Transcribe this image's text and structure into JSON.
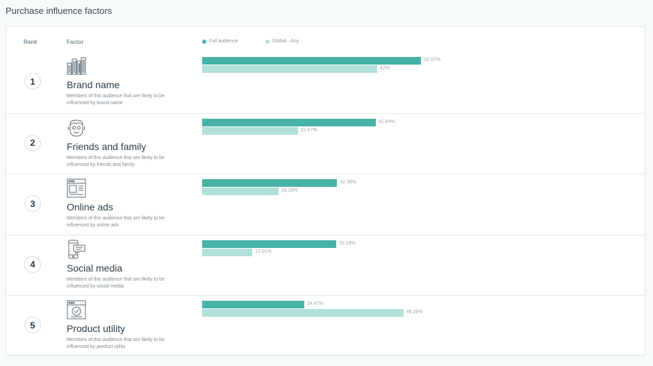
{
  "page_title": "Purchase influence factors",
  "headers": {
    "rank": "Rank",
    "factor": "Factor"
  },
  "legend": {
    "full": "Full audience",
    "global": "Global - Any"
  },
  "colors": {
    "full": "#47b3a6",
    "global": "#b1e0da"
  },
  "rows": [
    {
      "rank": "1",
      "name": "Brand name",
      "desc": "Members of this audience that are likely to be influenced by brand name",
      "icon": "city-buildings-icon",
      "full_label": "52.57%",
      "global_label": "42%"
    },
    {
      "rank": "2",
      "name": "Friends and family",
      "desc": "Members of this audience that are likely to be influenced by friends and family",
      "icon": "face-icon",
      "full_label": "41.64%",
      "global_label": "22.97%"
    },
    {
      "rank": "3",
      "name": "Online ads",
      "desc": "Members of this audience that are likely to be influenced by online ads",
      "icon": "browser-ad-icon",
      "full_label": "32.38%",
      "global_label": "18.33%"
    },
    {
      "rank": "4",
      "name": "Social media",
      "desc": "Members of this audience that are likely to be influenced by social media",
      "icon": "phone-chat-icon",
      "full_label": "32.18%",
      "global_label": "12.01%"
    },
    {
      "rank": "5",
      "name": "Product utility",
      "desc": "Members of this audience that are likely to be influenced by product utility",
      "icon": "browser-check-icon",
      "full_label": "24.47%",
      "global_label": "48.29%"
    }
  ],
  "chart_data": {
    "type": "bar",
    "orientation": "horizontal",
    "categories": [
      "Brand name",
      "Friends and family",
      "Online ads",
      "Social media",
      "Product utility"
    ],
    "series": [
      {
        "name": "Full audience",
        "values": [
          52.57,
          41.64,
          32.38,
          32.18,
          24.47
        ]
      },
      {
        "name": "Global - Any",
        "values": [
          42,
          22.97,
          18.33,
          12.01,
          48.29
        ]
      }
    ],
    "unit": "%",
    "xlim": [
      0,
      100
    ],
    "grid": false,
    "legend_position": "top"
  }
}
